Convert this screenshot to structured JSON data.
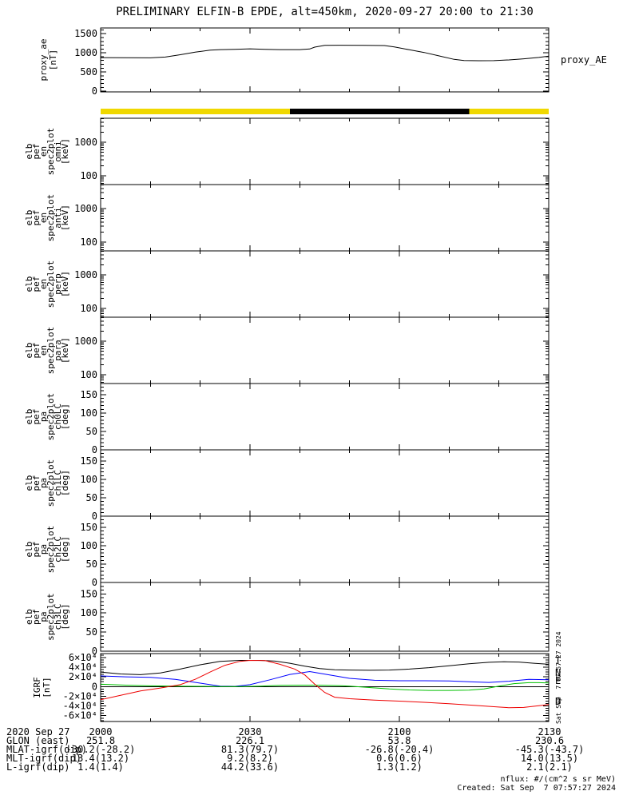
{
  "title": "PRELIMINARY ELFIN-B EPDE, alt=450km, 2020-09-27 20:00 to 21:30",
  "footer": {
    "units": "nflux: #/(cm^2 s sr MeV)",
    "created": "Created: Sat Sep  7 07:57:27 2024"
  },
  "chart_data": {
    "type": "line",
    "title": "PRELIMINARY ELFIN-B EPDE, alt=450km, 2020-09-27 20:00 to 21:30",
    "side_timestamp": "Sat Sep  7 07:57:27 2024",
    "x_axis": {
      "range_min": [
        0,
        90
      ],
      "tick_minutes": [
        0,
        30,
        60,
        90
      ],
      "tick_labels": [
        "2000",
        "2030",
        "2100",
        "2130"
      ],
      "minor_step_min": 10,
      "date": "2020 Sep 27"
    },
    "colors": {
      "black": "#000000",
      "yellow": "#f0d800",
      "blue": "#0000ff",
      "green": "#00c000",
      "red": "#ee0000"
    },
    "panels": [
      {
        "id": "proxy_ae",
        "ylabel_lines": [
          "proxy_ae",
          "[nT]"
        ],
        "right_label": "proxy_AE",
        "scale": "linear",
        "ylim": [
          -20,
          1650
        ],
        "yticks": [
          {
            "v": 0,
            "label": "0"
          },
          {
            "v": 500,
            "label": "500"
          },
          {
            "v": 1000,
            "label": "1000"
          },
          {
            "v": 1500,
            "label": "1500"
          }
        ],
        "yminor": 100,
        "series": [
          {
            "name": "proxy_AE",
            "color": "#000000",
            "points": [
              [
                0,
                875
              ],
              [
                5,
                872
              ],
              [
                10,
                870
              ],
              [
                13,
                890
              ],
              [
                16,
                950
              ],
              [
                19,
                1020
              ],
              [
                22,
                1070
              ],
              [
                24,
                1085
              ],
              [
                27,
                1090
              ],
              [
                30,
                1105
              ],
              [
                33,
                1092
              ],
              [
                36,
                1085
              ],
              [
                40,
                1085
              ],
              [
                42,
                1100
              ],
              [
                43,
                1150
              ],
              [
                45,
                1195
              ],
              [
                48,
                1200
              ],
              [
                53,
                1198
              ],
              [
                57,
                1190
              ],
              [
                59,
                1155
              ],
              [
                62,
                1080
              ],
              [
                65,
                1010
              ],
              [
                68,
                920
              ],
              [
                71,
                830
              ],
              [
                73,
                800
              ],
              [
                76,
                795
              ],
              [
                79,
                797
              ],
              [
                82,
                815
              ],
              [
                85,
                845
              ],
              [
                88,
                880
              ],
              [
                90,
                915
              ]
            ]
          }
        ]
      },
      {
        "id": "daynight_bar",
        "segments": [
          {
            "t0": 0,
            "t1": 38,
            "color": "#f0d800",
            "meaning": "day"
          },
          {
            "t0": 38,
            "t1": 74,
            "color": "#000000",
            "meaning": "night"
          },
          {
            "t0": 74,
            "t1": 90,
            "color": "#f0d800",
            "meaning": "day"
          }
        ]
      },
      {
        "id": "en_omni",
        "ylabel_lines": [
          "elb",
          "pef",
          "en",
          "spec2plot",
          "omni",
          "[keV]"
        ],
        "scale": "log",
        "ylim": [
          55,
          5200
        ],
        "yticks": [
          {
            "v": 100,
            "label": "100"
          },
          {
            "v": 1000,
            "label": "1000"
          }
        ],
        "series": []
      },
      {
        "id": "en_anti",
        "ylabel_lines": [
          "elb",
          "pef",
          "en",
          "spec2plot",
          "anti",
          "[keV]"
        ],
        "scale": "log",
        "ylim": [
          55,
          5200
        ],
        "yticks": [
          {
            "v": 100,
            "label": "100"
          },
          {
            "v": 1000,
            "label": "1000"
          }
        ],
        "series": []
      },
      {
        "id": "en_perp",
        "ylabel_lines": [
          "elb",
          "pef",
          "en",
          "spec2plot",
          "perp",
          "[keV]"
        ],
        "scale": "log",
        "ylim": [
          55,
          5200
        ],
        "yticks": [
          {
            "v": 100,
            "label": "100"
          },
          {
            "v": 1000,
            "label": "1000"
          }
        ],
        "series": []
      },
      {
        "id": "en_para",
        "ylabel_lines": [
          "elb",
          "pef",
          "en",
          "spec2plot",
          "para",
          "[keV]"
        ],
        "scale": "log",
        "ylim": [
          55,
          5200
        ],
        "yticks": [
          {
            "v": 100,
            "label": "100"
          },
          {
            "v": 1000,
            "label": "1000"
          }
        ],
        "series": []
      },
      {
        "id": "pa_ch0",
        "ylabel_lines": [
          "elb",
          "pef",
          "pa",
          "spec2plot",
          "ch0LC",
          "[deg]"
        ],
        "scale": "linear",
        "ylim": [
          0,
          180
        ],
        "yticks": [
          {
            "v": 0,
            "label": "0"
          },
          {
            "v": 50,
            "label": "50"
          },
          {
            "v": 100,
            "label": "100"
          },
          {
            "v": 150,
            "label": "150"
          }
        ],
        "yminor": 10,
        "series": []
      },
      {
        "id": "pa_ch1",
        "ylabel_lines": [
          "elb",
          "pef",
          "pa",
          "spec2plot",
          "ch1LC",
          "[deg]"
        ],
        "scale": "linear",
        "ylim": [
          0,
          180
        ],
        "yticks": [
          {
            "v": 0,
            "label": "0"
          },
          {
            "v": 50,
            "label": "50"
          },
          {
            "v": 100,
            "label": "100"
          },
          {
            "v": 150,
            "label": "150"
          }
        ],
        "yminor": 10,
        "series": []
      },
      {
        "id": "pa_ch2",
        "ylabel_lines": [
          "elb",
          "pef",
          "pa",
          "spec2plot",
          "ch2LC",
          "[deg]"
        ],
        "scale": "linear",
        "ylim": [
          0,
          180
        ],
        "yticks": [
          {
            "v": 0,
            "label": "0"
          },
          {
            "v": 50,
            "label": "50"
          },
          {
            "v": 100,
            "label": "100"
          },
          {
            "v": 150,
            "label": "150"
          }
        ],
        "yminor": 10,
        "series": []
      },
      {
        "id": "pa_ch3",
        "ylabel_lines": [
          "elb",
          "pef",
          "pa",
          "spec2plot",
          "ch3LC",
          "[deg]"
        ],
        "scale": "linear",
        "ylim": [
          0,
          180
        ],
        "yticks": [
          {
            "v": 0,
            "label": "0"
          },
          {
            "v": 50,
            "label": "50"
          },
          {
            "v": 100,
            "label": "100"
          },
          {
            "v": 150,
            "label": "150"
          }
        ],
        "yminor": 10,
        "series": []
      },
      {
        "id": "igrf",
        "ylabel_lines": [
          "IGRF",
          "[nT]"
        ],
        "scale": "linear",
        "ylim": [
          -72000,
          68000
        ],
        "yticks": [
          {
            "v": -60000,
            "label": "-6×10⁴"
          },
          {
            "v": -40000,
            "label": "-4×10⁴"
          },
          {
            "v": -20000,
            "label": "-2×10⁴"
          },
          {
            "v": 0,
            "label": "0"
          },
          {
            "v": 20000,
            "label": "2×10⁴"
          },
          {
            "v": 40000,
            "label": "4×10⁴"
          },
          {
            "v": 60000,
            "label": "6×10⁴"
          }
        ],
        "yminor": 5000,
        "zero_line": true,
        "series": [
          {
            "name": "T",
            "color": "#000000",
            "points": [
              [
                0,
                30000
              ],
              [
                4,
                26000
              ],
              [
                8,
                24500
              ],
              [
                12,
                28000
              ],
              [
                16,
                36000
              ],
              [
                20,
                45000
              ],
              [
                24,
                52000
              ],
              [
                28,
                54000
              ],
              [
                32,
                54000
              ],
              [
                35,
                52500
              ],
              [
                38,
                48000
              ],
              [
                41,
                42000
              ],
              [
                44,
                37000
              ],
              [
                47,
                34500
              ],
              [
                50,
                34000
              ],
              [
                54,
                33500
              ],
              [
                58,
                34000
              ],
              [
                62,
                36000
              ],
              [
                66,
                39000
              ],
              [
                70,
                43000
              ],
              [
                74,
                47000
              ],
              [
                78,
                50000
              ],
              [
                81,
                51000
              ],
              [
                84,
                50500
              ],
              [
                87,
                48000
              ],
              [
                90,
                46000
              ]
            ]
          },
          {
            "name": "N",
            "color": "#0000ff",
            "points": [
              [
                0,
                22000
              ],
              [
                5,
                20000
              ],
              [
                10,
                19000
              ],
              [
                15,
                15000
              ],
              [
                20,
                7000
              ],
              [
                24,
                1000
              ],
              [
                27,
                500
              ],
              [
                30,
                4000
              ],
              [
                34,
                14000
              ],
              [
                38,
                25000
              ],
              [
                42,
                31000
              ],
              [
                46,
                24000
              ],
              [
                50,
                17000
              ],
              [
                55,
                13000
              ],
              [
                60,
                12000
              ],
              [
                65,
                12000
              ],
              [
                70,
                11500
              ],
              [
                75,
                9500
              ],
              [
                78,
                8500
              ],
              [
                82,
                11000
              ],
              [
                86,
                15000
              ],
              [
                90,
                14000
              ]
            ]
          },
          {
            "name": "E",
            "color": "#00c000",
            "points": [
              [
                0,
                5000
              ],
              [
                5,
                3000
              ],
              [
                10,
                1500
              ],
              [
                15,
                1000
              ],
              [
                20,
                500
              ],
              [
                24,
                0
              ],
              [
                28,
                0
              ],
              [
                32,
                1000
              ],
              [
                36,
                2500
              ],
              [
                40,
                3000
              ],
              [
                44,
                3000
              ],
              [
                48,
                2000
              ],
              [
                50,
                1000
              ],
              [
                54,
                -2000
              ],
              [
                58,
                -5000
              ],
              [
                62,
                -7000
              ],
              [
                66,
                -8000
              ],
              [
                70,
                -8000
              ],
              [
                74,
                -7500
              ],
              [
                77,
                -5000
              ],
              [
                80,
                1000
              ],
              [
                83,
                6000
              ],
              [
                86,
                8000
              ],
              [
                88,
                8000
              ],
              [
                90,
                7500
              ]
            ]
          },
          {
            "name": "D",
            "color": "#ee0000",
            "points": [
              [
                0,
                -27000
              ],
              [
                4,
                -18000
              ],
              [
                8,
                -9000
              ],
              [
                12,
                -3000
              ],
              [
                16,
                4000
              ],
              [
                19,
                15000
              ],
              [
                22,
                30000
              ],
              [
                25,
                44000
              ],
              [
                28,
                52000
              ],
              [
                30,
                54000
              ],
              [
                33,
                53500
              ],
              [
                36,
                46000
              ],
              [
                39,
                36000
              ],
              [
                41,
                24000
              ],
              [
                43,
                5000
              ],
              [
                45,
                -12000
              ],
              [
                47,
                -22000
              ],
              [
                50,
                -25000
              ],
              [
                55,
                -28000
              ],
              [
                60,
                -30000
              ],
              [
                65,
                -32500
              ],
              [
                70,
                -35500
              ],
              [
                75,
                -38500
              ],
              [
                79,
                -41500
              ],
              [
                82,
                -43500
              ],
              [
                85,
                -43000
              ],
              [
                88,
                -39500
              ],
              [
                90,
                -37000
              ]
            ]
          }
        ]
      }
    ],
    "bottom_rows": [
      {
        "label": "2020 Sep 27",
        "values": [
          "2000",
          "2030",
          "2100",
          "2130"
        ]
      },
      {
        "label": "GLON (east)",
        "values": [
          "251.8",
          "226.1",
          "53.8",
          "230.6"
        ]
      },
      {
        "label": "MLAT-igrf(dip)",
        "values": [
          "-30.2(-28.2)",
          "81.3(79.7)",
          "-26.8(-20.4)",
          "-45.3(-43.7)"
        ]
      },
      {
        "label": "MLT-igrf(dip)",
        "values": [
          "13.4(13.2)",
          "9.2(8.2)",
          "0.6(0.6)",
          "14.0(13.5)"
        ]
      },
      {
        "label": "L-igrf(dip)",
        "values": [
          "1.4(1.4)",
          "44.2(33.6)",
          "1.3(1.2)",
          "2.1(2.1)"
        ]
      }
    ]
  }
}
